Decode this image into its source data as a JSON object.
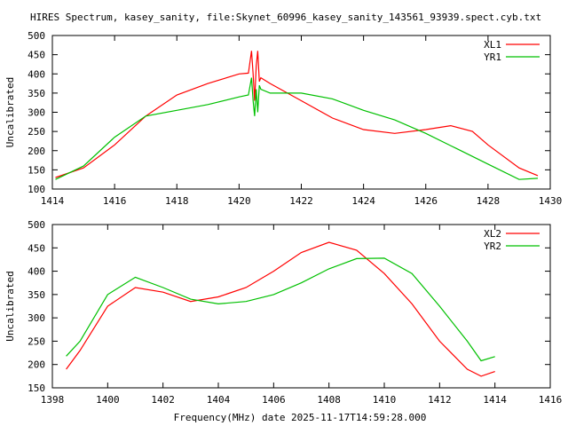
{
  "title": "HIRES Spectrum, kasey_sanity, file:Skynet_60996_kasey_sanity_143561_93939.spect.cyb.txt",
  "xlabel_bottom": "Frequency(MHz) date 2025-11-17T14:59:28.000",
  "chart_data": [
    {
      "type": "line",
      "ylabel": "Uncalibrated",
      "xlim": [
        1414,
        1430
      ],
      "ylim": [
        100,
        500
      ],
      "xticks": [
        1414,
        1416,
        1418,
        1420,
        1422,
        1424,
        1426,
        1428,
        1430
      ],
      "yticks": [
        100,
        150,
        200,
        250,
        300,
        350,
        400,
        450,
        500
      ],
      "legend_position": "top-right",
      "series": [
        {
          "name": "XL1",
          "color": "#ff0000",
          "x": [
            1414.1,
            1415,
            1416,
            1417,
            1418,
            1419,
            1420,
            1420.3,
            1420.4,
            1420.45,
            1420.5,
            1420.55,
            1420.6,
            1420.65,
            1420.7,
            1421,
            1422,
            1423,
            1424,
            1425,
            1426,
            1426.8,
            1427.5,
            1428,
            1429,
            1429.6
          ],
          "y": [
            130,
            155,
            215,
            290,
            345,
            375,
            400,
            402,
            460,
            400,
            330,
            420,
            460,
            380,
            390,
            375,
            330,
            285,
            255,
            245,
            255,
            265,
            250,
            215,
            155,
            135
          ]
        },
        {
          "name": "YR1",
          "color": "#00c000",
          "x": [
            1414.1,
            1415,
            1416,
            1417,
            1418,
            1419,
            1420,
            1420.3,
            1420.4,
            1420.45,
            1420.5,
            1420.55,
            1420.6,
            1420.65,
            1420.7,
            1421,
            1422,
            1423,
            1424,
            1425,
            1426,
            1427,
            1428,
            1429,
            1429.6
          ],
          "y": [
            125,
            160,
            235,
            290,
            305,
            320,
            340,
            345,
            390,
            330,
            290,
            360,
            300,
            370,
            360,
            350,
            350,
            335,
            305,
            280,
            245,
            205,
            165,
            125,
            128
          ]
        }
      ]
    },
    {
      "type": "line",
      "ylabel": "Uncalibrated",
      "xlabel": "Frequency(MHz) date 2025-11-17T14:59:28.000",
      "xlim": [
        1398,
        1416
      ],
      "ylim": [
        150,
        500
      ],
      "xticks": [
        1398,
        1400,
        1402,
        1404,
        1406,
        1408,
        1410,
        1412,
        1414,
        1416
      ],
      "yticks": [
        150,
        200,
        250,
        300,
        350,
        400,
        450,
        500
      ],
      "legend_position": "top-right",
      "series": [
        {
          "name": "XL2",
          "color": "#ff0000",
          "x": [
            1398.5,
            1399,
            1400,
            1401,
            1402,
            1403,
            1404,
            1405,
            1406,
            1407,
            1408,
            1409,
            1410,
            1411,
            1412,
            1413,
            1413.5,
            1414
          ],
          "y": [
            190,
            230,
            325,
            365,
            355,
            335,
            345,
            365,
            400,
            440,
            462,
            445,
            395,
            330,
            250,
            190,
            175,
            185
          ]
        },
        {
          "name": "YR2",
          "color": "#00c000",
          "x": [
            1398.5,
            1399,
            1400,
            1401,
            1402,
            1403,
            1404,
            1405,
            1406,
            1407,
            1408,
            1409,
            1410,
            1411,
            1412,
            1413,
            1413.5,
            1414
          ],
          "y": [
            218,
            250,
            350,
            387,
            365,
            340,
            330,
            335,
            350,
            375,
            405,
            427,
            428,
            395,
            325,
            250,
            208,
            217
          ]
        }
      ]
    }
  ]
}
